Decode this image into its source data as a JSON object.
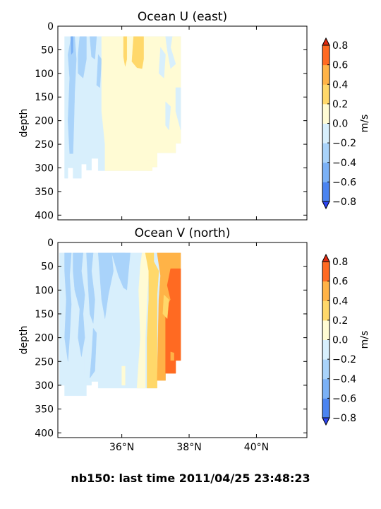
{
  "footer": "nb150: last time 2011/04/25 23:48:23",
  "colorbar": {
    "levels": [
      -0.8,
      -0.6,
      -0.4,
      -0.2,
      0.0,
      0.2,
      0.4,
      0.6,
      0.8
    ],
    "tick_labels": [
      "−0.8",
      "−0.6",
      "−0.4",
      "−0.2",
      "0.0",
      "0.2",
      "0.4",
      "0.6",
      "0.8"
    ],
    "colors": [
      "#2d46f5",
      "#4b84f0",
      "#7bb1f6",
      "#a9d3fa",
      "#d8effc",
      "#fffbd4",
      "#ffd86a",
      "#ffb347",
      "#ff6a22",
      "#e02a10"
    ],
    "extend": "both",
    "label": "m/s"
  },
  "chart_data": [
    {
      "type": "heatmap",
      "title": "Ocean U (east)",
      "xlabel": "",
      "ylabel": "depth",
      "xlim": [
        34.1,
        41.5
      ],
      "ylim": [
        410,
        0
      ],
      "x_ticks": [
        36,
        38,
        40
      ],
      "x_tick_labels": [
        "36°N",
        "38°N",
        "40°N"
      ],
      "show_x_tick_labels": false,
      "y_ticks": [
        0,
        50,
        100,
        150,
        200,
        250,
        300,
        350,
        400
      ],
      "y_tick_labels": [
        "0",
        "50",
        "100",
        "150",
        "200",
        "250",
        "300",
        "350",
        "400"
      ],
      "colorbar_label": "m/s",
      "regions": [
        {
          "value": -0.1,
          "poly": [
            [
              34.3,
              22
            ],
            [
              37.75,
              22
            ],
            [
              37.75,
              248
            ],
            [
              37.6,
              248
            ],
            [
              37.6,
              268
            ],
            [
              37.05,
              268
            ],
            [
              37.05,
              298
            ],
            [
              36.9,
              298
            ],
            [
              36.9,
              306
            ],
            [
              35.3,
              306
            ],
            [
              35.3,
              280
            ],
            [
              35.1,
              280
            ],
            [
              35.1,
              305
            ],
            [
              34.95,
              305
            ],
            [
              34.95,
              292
            ],
            [
              34.8,
              292
            ],
            [
              34.8,
              322
            ],
            [
              34.55,
              322
            ],
            [
              34.55,
              300
            ],
            [
              34.4,
              300
            ],
            [
              34.4,
              322
            ],
            [
              34.3,
              322
            ]
          ]
        },
        {
          "value": -0.3,
          "poly": [
            [
              34.5,
              22
            ],
            [
              34.6,
              22
            ],
            [
              34.65,
              70
            ],
            [
              34.6,
              140
            ],
            [
              34.58,
              200
            ],
            [
              34.55,
              270
            ],
            [
              34.45,
              270
            ],
            [
              34.4,
              200
            ],
            [
              34.45,
              110
            ],
            [
              34.4,
              60
            ]
          ]
        },
        {
          "value": -0.5,
          "poly": [
            [
              34.48,
              22
            ],
            [
              34.55,
              22
            ],
            [
              34.55,
              55
            ],
            [
              34.5,
              60
            ]
          ]
        },
        {
          "value": -0.3,
          "poly": [
            [
              34.75,
              22
            ],
            [
              34.95,
              22
            ],
            [
              34.95,
              70
            ],
            [
              34.85,
              110
            ],
            [
              34.7,
              100
            ],
            [
              34.7,
              60
            ]
          ]
        },
        {
          "value": -0.3,
          "poly": [
            [
              35.05,
              22
            ],
            [
              35.25,
              22
            ],
            [
              35.2,
              70
            ],
            [
              35.1,
              65
            ]
          ]
        },
        {
          "value": -0.3,
          "poly": [
            [
              35.3,
              60
            ],
            [
              35.4,
              70
            ],
            [
              35.35,
              130
            ],
            [
              35.25,
              125
            ]
          ]
        },
        {
          "value": 0.1,
          "poly": [
            [
              35.4,
              22
            ],
            [
              37.75,
              22
            ],
            [
              37.75,
              248
            ],
            [
              37.6,
              248
            ],
            [
              37.6,
              268
            ],
            [
              37.05,
              268
            ],
            [
              37.05,
              298
            ],
            [
              36.9,
              298
            ],
            [
              36.9,
              306
            ],
            [
              35.5,
              306
            ],
            [
              35.5,
              250
            ],
            [
              35.4,
              180
            ]
          ]
        },
        {
          "value": 0.3,
          "poly": [
            [
              36.35,
              22
            ],
            [
              36.65,
              22
            ],
            [
              36.65,
              70
            ],
            [
              36.6,
              90
            ],
            [
              36.45,
              88
            ],
            [
              36.3,
              75
            ]
          ]
        },
        {
          "value": 0.3,
          "poly": [
            [
              36.05,
              22
            ],
            [
              36.15,
              22
            ],
            [
              36.15,
              70
            ],
            [
              36.1,
              85
            ],
            [
              36.05,
              65
            ]
          ]
        },
        {
          "value": -0.1,
          "poly": [
            [
              37.3,
              22
            ],
            [
              37.5,
              22
            ],
            [
              37.45,
              45
            ],
            [
              37.6,
              80
            ],
            [
              37.45,
              90
            ],
            [
              37.35,
              50
            ]
          ]
        },
        {
          "value": -0.1,
          "poly": [
            [
              37.15,
              45
            ],
            [
              37.3,
              60
            ],
            [
              37.25,
              110
            ],
            [
              37.1,
              100
            ]
          ]
        },
        {
          "value": -0.1,
          "poly": [
            [
              37.6,
              130
            ],
            [
              37.75,
              130
            ],
            [
              37.75,
              220
            ],
            [
              37.6,
              180
            ]
          ]
        },
        {
          "value": -0.1,
          "poly": [
            [
              37.3,
              160
            ],
            [
              37.45,
              170
            ],
            [
              37.4,
              220
            ],
            [
              37.3,
              210
            ]
          ]
        },
        {
          "value": 0.1,
          "poly": [
            [
              36.75,
              285
            ],
            [
              36.9,
              285
            ],
            [
              36.9,
              306
            ],
            [
              36.75,
              306
            ]
          ]
        }
      ]
    },
    {
      "type": "heatmap",
      "title": "Ocean V (north)",
      "xlabel": "",
      "ylabel": "depth",
      "xlim": [
        34.1,
        41.5
      ],
      "ylim": [
        410,
        0
      ],
      "x_ticks": [
        36,
        38,
        40
      ],
      "x_tick_labels": [
        "36°N",
        "38°N",
        "40°N"
      ],
      "show_x_tick_labels": true,
      "y_ticks": [
        0,
        50,
        100,
        150,
        200,
        250,
        300,
        350,
        400
      ],
      "y_tick_labels": [
        "0",
        "50",
        "100",
        "150",
        "200",
        "250",
        "300",
        "350",
        "400"
      ],
      "colorbar_label": "m/s",
      "regions": [
        {
          "value": -0.1,
          "poly": [
            [
              34.15,
              22
            ],
            [
              37.75,
              22
            ],
            [
              37.75,
              248
            ],
            [
              37.6,
              248
            ],
            [
              37.6,
              275
            ],
            [
              37.3,
              275
            ],
            [
              37.3,
              290
            ],
            [
              37.05,
              290
            ],
            [
              37.05,
              306
            ],
            [
              35.3,
              306
            ],
            [
              35.3,
              292
            ],
            [
              35.1,
              292
            ],
            [
              35.1,
              300
            ],
            [
              34.95,
              300
            ],
            [
              34.95,
              322
            ],
            [
              34.3,
              322
            ],
            [
              34.3,
              300
            ],
            [
              34.15,
              300
            ]
          ]
        },
        {
          "value": -0.3,
          "poly": [
            [
              34.3,
              22
            ],
            [
              34.5,
              22
            ],
            [
              34.45,
              70
            ],
            [
              34.5,
              130
            ],
            [
              34.45,
              200
            ],
            [
              34.4,
              250
            ],
            [
              34.3,
              200
            ],
            [
              34.35,
              120
            ],
            [
              34.3,
              60
            ]
          ]
        },
        {
          "value": -0.3,
          "poly": [
            [
              34.55,
              22
            ],
            [
              34.85,
              22
            ],
            [
              34.8,
              60
            ],
            [
              34.9,
              110
            ],
            [
              34.85,
              150
            ],
            [
              34.9,
              200
            ],
            [
              34.8,
              240
            ],
            [
              34.7,
              200
            ],
            [
              34.75,
              140
            ],
            [
              34.6,
              100
            ],
            [
              34.55,
              60
            ]
          ]
        },
        {
          "value": -0.3,
          "poly": [
            [
              34.95,
              22
            ],
            [
              35.15,
              22
            ],
            [
              35.1,
              60
            ],
            [
              35.2,
              120
            ],
            [
              35.15,
              170
            ],
            [
              35.05,
              150
            ],
            [
              35.0,
              90
            ]
          ]
        },
        {
          "value": -0.3,
          "poly": [
            [
              35.3,
              22
            ],
            [
              35.7,
              22
            ],
            [
              35.75,
              60
            ],
            [
              35.6,
              110
            ],
            [
              35.5,
              160
            ],
            [
              35.4,
              120
            ],
            [
              35.35,
              70
            ]
          ]
        },
        {
          "value": -0.5,
          "poly": [
            [
              35.8,
              22
            ],
            [
              36.1,
              22
            ],
            [
              36.05,
              45
            ],
            [
              35.95,
              50
            ],
            [
              35.85,
              40
            ]
          ]
        },
        {
          "value": -0.3,
          "poly": [
            [
              35.7,
              22
            ],
            [
              36.25,
              22
            ],
            [
              36.2,
              60
            ],
            [
              36.15,
              100
            ],
            [
              36.05,
              95
            ],
            [
              35.9,
              70
            ]
          ]
        },
        {
          "value": -0.3,
          "poly": [
            [
              35.15,
              180
            ],
            [
              35.25,
              190
            ],
            [
              35.2,
              270
            ],
            [
              35.05,
              285
            ],
            [
              35.1,
              240
            ]
          ]
        },
        {
          "value": -0.1,
          "poly": [
            [
              34.9,
              225
            ],
            [
              35.05,
              230
            ],
            [
              35.0,
              290
            ],
            [
              34.9,
              280
            ]
          ]
        },
        {
          "value": 0.1,
          "poly": [
            [
              36.6,
              22
            ],
            [
              36.7,
              22
            ],
            [
              36.8,
              60
            ],
            [
              36.75,
              120
            ],
            [
              36.7,
              200
            ],
            [
              36.7,
              306
            ],
            [
              36.45,
              306
            ],
            [
              36.55,
              200
            ],
            [
              36.5,
              100
            ],
            [
              36.55,
              50
            ]
          ]
        },
        {
          "value": 0.1,
          "poly": [
            [
              36.0,
              260
            ],
            [
              36.1,
              260
            ],
            [
              36.1,
              300
            ],
            [
              36.0,
              300
            ]
          ]
        },
        {
          "value": 0.3,
          "poly": [
            [
              36.7,
              22
            ],
            [
              36.95,
              22
            ],
            [
              36.95,
              40
            ],
            [
              37.1,
              60
            ],
            [
              37.05,
              110
            ],
            [
              37.05,
              306
            ],
            [
              36.75,
              306
            ],
            [
              36.75,
              200
            ],
            [
              36.8,
              120
            ],
            [
              36.8,
              60
            ]
          ]
        },
        {
          "value": 0.5,
          "poly": [
            [
              37.05,
              22
            ],
            [
              37.75,
              22
            ],
            [
              37.75,
              248
            ],
            [
              37.6,
              248
            ],
            [
              37.6,
              275
            ],
            [
              37.3,
              275
            ],
            [
              37.3,
              290
            ],
            [
              37.05,
              290
            ],
            [
              37.1,
              120
            ],
            [
              37.15,
              70
            ]
          ]
        },
        {
          "value": 0.7,
          "poly": [
            [
              37.45,
              55
            ],
            [
              37.75,
              55
            ],
            [
              37.75,
              248
            ],
            [
              37.6,
              248
            ],
            [
              37.6,
              275
            ],
            [
              37.3,
              275
            ],
            [
              37.3,
              140
            ],
            [
              37.45,
              120
            ],
            [
              37.35,
              90
            ]
          ]
        },
        {
          "value": 0.3,
          "poly": [
            [
              37.25,
              110
            ],
            [
              37.4,
              120
            ],
            [
              37.35,
              160
            ],
            [
              37.22,
              150
            ]
          ]
        },
        {
          "value": 0.5,
          "poly": [
            [
              37.45,
              230
            ],
            [
              37.55,
              232
            ],
            [
              37.55,
              248
            ],
            [
              37.45,
              248
            ]
          ]
        }
      ]
    }
  ]
}
